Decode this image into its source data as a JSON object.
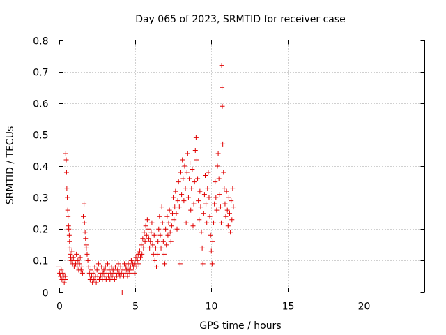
{
  "chart_data": {
    "type": "scatter",
    "title": "Day 065 of 2023, SRMTID for receiver case",
    "xlabel": "GPS time / hours",
    "ylabel": "SRMTID / TECUs",
    "xlim": [
      0,
      24
    ],
    "ylim": [
      0,
      0.8
    ],
    "xticks": [
      0,
      5,
      10,
      15,
      20
    ],
    "yticks": [
      0,
      0.1,
      0.2,
      0.3,
      0.4,
      0.5,
      0.6,
      0.7,
      0.8
    ],
    "xtick_labels": [
      "0",
      "5",
      "10",
      "15",
      "20"
    ],
    "ytick_labels": [
      "0",
      "0.1",
      "0.2",
      "0.3",
      "0.4",
      "0.5",
      "0.6",
      "0.7",
      "0.8"
    ],
    "grid": true,
    "marker": "plus",
    "color": "#e00000",
    "series": [
      {
        "name": "SRMTID",
        "points": [
          [
            0.0,
            0.08
          ],
          [
            0.05,
            0.06
          ],
          [
            0.1,
            0.05
          ],
          [
            0.15,
            0.07
          ],
          [
            0.2,
            0.04
          ],
          [
            0.25,
            0.06
          ],
          [
            0.3,
            0.05
          ],
          [
            0.35,
            0.03
          ],
          [
            0.4,
            0.05
          ],
          [
            0.45,
            0.04
          ],
          [
            0.45,
            0.44
          ],
          [
            0.48,
            0.42
          ],
          [
            0.5,
            0.38
          ],
          [
            0.52,
            0.33
          ],
          [
            0.55,
            0.3
          ],
          [
            0.58,
            0.26
          ],
          [
            0.6,
            0.24
          ],
          [
            0.63,
            0.21
          ],
          [
            0.65,
            0.2
          ],
          [
            0.68,
            0.18
          ],
          [
            0.7,
            0.16
          ],
          [
            0.72,
            0.14
          ],
          [
            0.75,
            0.12
          ],
          [
            0.78,
            0.11
          ],
          [
            0.8,
            0.1
          ],
          [
            0.85,
            0.13
          ],
          [
            0.9,
            0.09
          ],
          [
            0.95,
            0.11
          ],
          [
            1.0,
            0.08
          ],
          [
            1.05,
            0.1
          ],
          [
            1.1,
            0.09
          ],
          [
            1.15,
            0.12
          ],
          [
            1.2,
            0.08
          ],
          [
            1.25,
            0.1
          ],
          [
            1.3,
            0.07
          ],
          [
            1.35,
            0.09
          ],
          [
            1.4,
            0.11
          ],
          [
            1.45,
            0.07
          ],
          [
            1.5,
            0.08
          ],
          [
            1.55,
            0.06
          ],
          [
            1.6,
            0.24
          ],
          [
            1.65,
            0.28
          ],
          [
            1.68,
            0.22
          ],
          [
            1.72,
            0.19
          ],
          [
            1.75,
            0.17
          ],
          [
            1.78,
            0.15
          ],
          [
            1.8,
            0.14
          ],
          [
            1.85,
            0.12
          ],
          [
            1.9,
            0.1
          ],
          [
            1.95,
            0.08
          ],
          [
            2.0,
            0.06
          ],
          [
            2.05,
            0.04
          ],
          [
            2.1,
            0.07
          ],
          [
            2.15,
            0.05
          ],
          [
            2.2,
            0.03
          ],
          [
            2.25,
            0.06
          ],
          [
            2.3,
            0.04
          ],
          [
            2.35,
            0.08
          ],
          [
            2.4,
            0.05
          ],
          [
            2.45,
            0.03
          ],
          [
            2.5,
            0.07
          ],
          [
            2.55,
            0.05
          ],
          [
            2.6,
            0.09
          ],
          [
            2.65,
            0.04
          ],
          [
            2.7,
            0.06
          ],
          [
            2.75,
            0.05
          ],
          [
            2.8,
            0.08
          ],
          [
            2.85,
            0.04
          ],
          [
            2.9,
            0.06
          ],
          [
            2.95,
            0.07
          ],
          [
            3.0,
            0.05
          ],
          [
            3.05,
            0.08
          ],
          [
            3.1,
            0.04
          ],
          [
            3.15,
            0.06
          ],
          [
            3.2,
            0.09
          ],
          [
            3.25,
            0.05
          ],
          [
            3.3,
            0.07
          ],
          [
            3.35,
            0.04
          ],
          [
            3.4,
            0.06
          ],
          [
            3.45,
            0.08
          ],
          [
            3.5,
            0.05
          ],
          [
            3.55,
            0.07
          ],
          [
            3.6,
            0.06
          ],
          [
            3.65,
            0.04
          ],
          [
            3.7,
            0.08
          ],
          [
            3.75,
            0.06
          ],
          [
            3.8,
            0.05
          ],
          [
            3.85,
            0.07
          ],
          [
            3.9,
            0.09
          ],
          [
            3.95,
            0.06
          ],
          [
            4.0,
            0.05
          ],
          [
            4.05,
            0.08
          ],
          [
            4.1,
            0.06
          ],
          [
            4.15,
            0.0
          ],
          [
            4.2,
            0.07
          ],
          [
            4.25,
            0.05
          ],
          [
            4.3,
            0.09
          ],
          [
            4.35,
            0.06
          ],
          [
            4.4,
            0.08
          ],
          [
            4.45,
            0.07
          ],
          [
            4.5,
            0.05
          ],
          [
            4.55,
            0.09
          ],
          [
            4.6,
            0.07
          ],
          [
            4.65,
            0.06
          ],
          [
            4.7,
            0.08
          ],
          [
            4.75,
            0.1
          ],
          [
            4.8,
            0.07
          ],
          [
            4.85,
            0.09
          ],
          [
            4.9,
            0.08
          ],
          [
            4.95,
            0.06
          ],
          [
            5.0,
            0.09
          ],
          [
            5.05,
            0.11
          ],
          [
            5.1,
            0.08
          ],
          [
            5.15,
            0.1
          ],
          [
            5.2,
            0.12
          ],
          [
            5.25,
            0.09
          ],
          [
            5.3,
            0.13
          ],
          [
            5.35,
            0.11
          ],
          [
            5.4,
            0.15
          ],
          [
            5.45,
            0.12
          ],
          [
            5.5,
            0.17
          ],
          [
            5.55,
            0.14
          ],
          [
            5.6,
            0.19
          ],
          [
            5.65,
            0.16
          ],
          [
            5.7,
            0.21
          ],
          [
            5.75,
            0.18
          ],
          [
            5.8,
            0.23
          ],
          [
            5.85,
            0.2
          ],
          [
            5.9,
            0.17
          ],
          [
            5.95,
            0.14
          ],
          [
            6.0,
            0.16
          ],
          [
            6.05,
            0.19
          ],
          [
            6.1,
            0.22
          ],
          [
            6.15,
            0.15
          ],
          [
            6.2,
            0.12
          ],
          [
            6.25,
            0.18
          ],
          [
            6.3,
            0.1
          ],
          [
            6.35,
            0.14
          ],
          [
            6.4,
            0.08
          ],
          [
            6.45,
            0.12
          ],
          [
            6.5,
            0.16
          ],
          [
            6.55,
            0.2
          ],
          [
            6.6,
            0.24
          ],
          [
            6.65,
            0.18
          ],
          [
            6.7,
            0.14
          ],
          [
            6.75,
            0.27
          ],
          [
            6.8,
            0.22
          ],
          [
            6.85,
            0.16
          ],
          [
            6.9,
            0.12
          ],
          [
            6.95,
            0.09
          ],
          [
            7.0,
            0.2
          ],
          [
            7.05,
            0.15
          ],
          [
            7.1,
            0.24
          ],
          [
            7.15,
            0.18
          ],
          [
            7.2,
            0.22
          ],
          [
            7.25,
            0.26
          ],
          [
            7.3,
            0.19
          ],
          [
            7.35,
            0.16
          ],
          [
            7.4,
            0.21
          ],
          [
            7.45,
            0.25
          ],
          [
            7.5,
            0.3
          ],
          [
            7.55,
            0.23
          ],
          [
            7.6,
            0.27
          ],
          [
            7.65,
            0.32
          ],
          [
            7.7,
            0.25
          ],
          [
            7.75,
            0.2
          ],
          [
            7.8,
            0.29
          ],
          [
            7.85,
            0.35
          ],
          [
            7.9,
            0.27
          ],
          [
            7.95,
            0.09
          ],
          [
            8.0,
            0.38
          ],
          [
            8.05,
            0.31
          ],
          [
            8.1,
            0.42
          ],
          [
            8.15,
            0.36
          ],
          [
            8.2,
            0.29
          ],
          [
            8.25,
            0.4
          ],
          [
            8.3,
            0.33
          ],
          [
            8.35,
            0.22
          ],
          [
            8.4,
            0.38
          ],
          [
            8.45,
            0.44
          ],
          [
            8.5,
            0.3
          ],
          [
            8.55,
            0.36
          ],
          [
            8.6,
            0.41
          ],
          [
            8.65,
            0.26
          ],
          [
            8.7,
            0.33
          ],
          [
            8.75,
            0.39
          ],
          [
            8.8,
            0.21
          ],
          [
            8.85,
            0.28
          ],
          [
            8.9,
            0.35
          ],
          [
            8.95,
            0.45
          ],
          [
            9.0,
            0.49
          ],
          [
            9.05,
            0.42
          ],
          [
            9.1,
            0.36
          ],
          [
            9.15,
            0.29
          ],
          [
            9.2,
            0.23
          ],
          [
            9.25,
            0.32
          ],
          [
            9.3,
            0.27
          ],
          [
            9.35,
            0.19
          ],
          [
            9.4,
            0.14
          ],
          [
            9.45,
            0.09
          ],
          [
            9.5,
            0.25
          ],
          [
            9.55,
            0.31
          ],
          [
            9.6,
            0.37
          ],
          [
            9.65,
            0.28
          ],
          [
            9.7,
            0.22
          ],
          [
            9.75,
            0.33
          ],
          [
            9.8,
            0.38
          ],
          [
            9.85,
            0.3
          ],
          [
            9.9,
            0.24
          ],
          [
            9.95,
            0.18
          ],
          [
            10.0,
            0.13
          ],
          [
            10.05,
            0.09
          ],
          [
            10.1,
            0.16
          ],
          [
            10.15,
            0.22
          ],
          [
            10.2,
            0.28
          ],
          [
            10.25,
            0.35
          ],
          [
            10.3,
            0.3
          ],
          [
            10.35,
            0.26
          ],
          [
            10.4,
            0.4
          ],
          [
            10.45,
            0.44
          ],
          [
            10.5,
            0.36
          ],
          [
            10.55,
            0.31
          ],
          [
            10.6,
            0.27
          ],
          [
            10.65,
            0.22
          ],
          [
            10.68,
            0.72
          ],
          [
            10.7,
            0.65
          ],
          [
            10.72,
            0.59
          ],
          [
            10.75,
            0.47
          ],
          [
            10.8,
            0.38
          ],
          [
            10.85,
            0.33
          ],
          [
            10.9,
            0.28
          ],
          [
            10.95,
            0.24
          ],
          [
            11.0,
            0.32
          ],
          [
            11.05,
            0.26
          ],
          [
            11.1,
            0.21
          ],
          [
            11.15,
            0.3
          ],
          [
            11.2,
            0.25
          ],
          [
            11.25,
            0.19
          ],
          [
            11.3,
            0.29
          ],
          [
            11.35,
            0.23
          ],
          [
            11.4,
            0.33
          ],
          [
            11.45,
            0.27
          ]
        ]
      }
    ]
  }
}
